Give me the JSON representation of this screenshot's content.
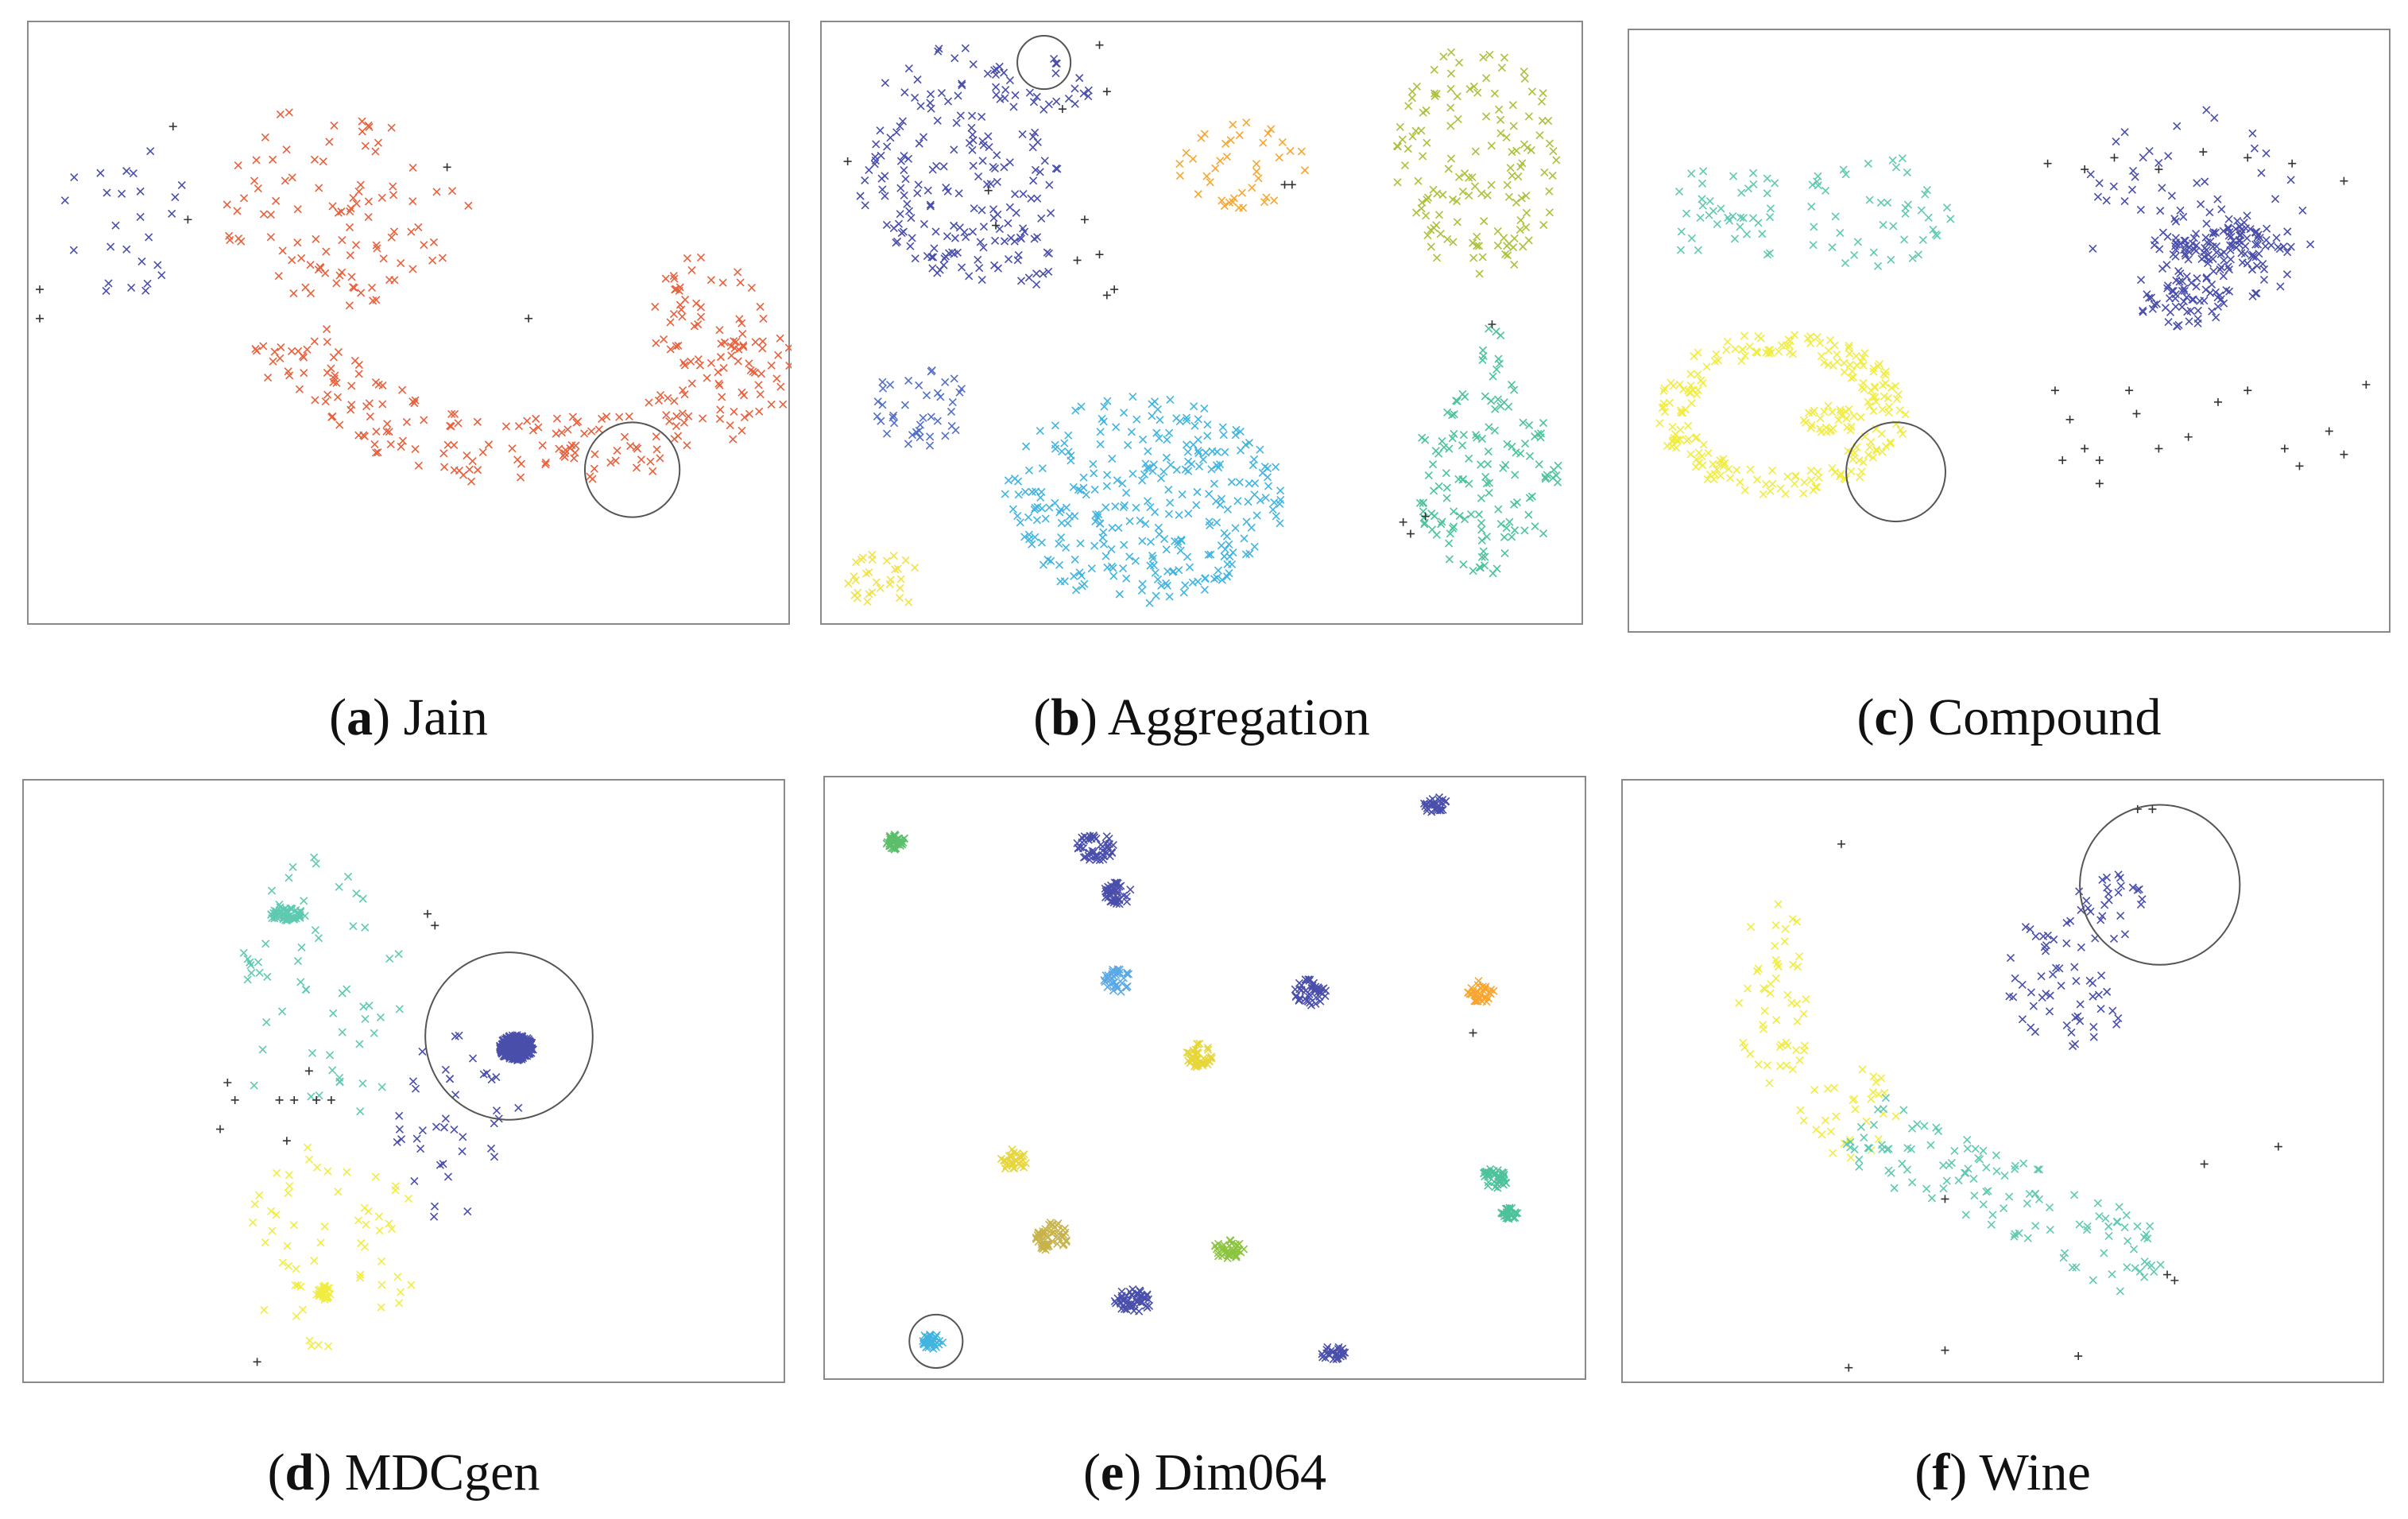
{
  "chart_data": [
    {
      "type": "scatter",
      "id": "jain",
      "label": "a",
      "name": "Jain",
      "xlim": [
        0,
        100
      ],
      "ylim": [
        0,
        100
      ],
      "clusters": [
        {
          "name": "cluster-1",
          "color": "#4a4fab",
          "regions": [
            {
              "shape": "blob",
              "cx": 12,
              "cy": 68,
              "rx": 9,
              "ry": 14,
              "n": 26
            }
          ]
        },
        {
          "name": "cluster-2",
          "color": "#e8603c",
          "regions": [
            {
              "shape": "arc",
              "cx": 67,
              "cy": 58,
              "rx": 36,
              "ry": 30,
              "a0": 200,
              "a1": 340,
              "w": 6,
              "n": 210
            },
            {
              "shape": "arc",
              "cx": 40,
              "cy": 80,
              "rx": 14,
              "ry": 22,
              "a0": 200,
              "a1": 300,
              "w": 5,
              "n": 40
            },
            {
              "shape": "blob",
              "cx": 48,
              "cy": 67,
              "rx": 12,
              "ry": 8,
              "n": 30
            },
            {
              "shape": "blob",
              "cx": 90,
              "cy": 52,
              "rx": 8,
              "ry": 10,
              "n": 50
            },
            {
              "shape": "blob",
              "cx": 38,
              "cy": 78,
              "rx": 14,
              "ry": 9,
              "n": 30
            }
          ]
        }
      ],
      "noise": [
        [
          0,
          56
        ],
        [
          0,
          51
        ],
        [
          18,
          84
        ],
        [
          55,
          77
        ],
        [
          66,
          51
        ],
        [
          20,
          68
        ]
      ],
      "circle": {
        "cx": 80,
        "cy": 25,
        "r": 6.4
      }
    },
    {
      "type": "scatter",
      "id": "aggregation",
      "label": "b",
      "name": "Aggregation",
      "xlim": [
        0,
        100
      ],
      "ylim": [
        0,
        100
      ],
      "clusters": [
        {
          "name": "cluster-1",
          "color": "#4a4fab",
          "regions": [
            {
              "shape": "blob",
              "cx": 17,
              "cy": 78,
              "rx": 14,
              "ry": 20,
              "n": 160
            },
            {
              "shape": "blob",
              "cx": 28,
              "cy": 91,
              "rx": 7,
              "ry": 6,
              "n": 20
            },
            {
              "shape": "blob",
              "cx": 22,
              "cy": 62,
              "rx": 11,
              "ry": 6,
              "n": 30
            }
          ]
        },
        {
          "name": "cluster-2",
          "color": "#f6a631",
          "regions": [
            {
              "shape": "blob",
              "cx": 55,
              "cy": 77,
              "rx": 9,
              "ry": 8,
              "n": 40
            }
          ]
        },
        {
          "name": "cluster-3",
          "color": "#a9c23b",
          "regions": [
            {
              "shape": "blob",
              "cx": 87,
              "cy": 78,
              "rx": 11,
              "ry": 20,
              "n": 140
            }
          ]
        },
        {
          "name": "cluster-4",
          "color": "#5470c6",
          "regions": [
            {
              "shape": "blob",
              "cx": 12,
              "cy": 36,
              "rx": 7,
              "ry": 7,
              "n": 40
            }
          ]
        },
        {
          "name": "cluster-5",
          "color": "#41b4e0",
          "regions": [
            {
              "shape": "blob",
              "cx": 42,
              "cy": 20,
              "rx": 19,
              "ry": 18,
              "n": 300
            }
          ]
        },
        {
          "name": "cluster-6",
          "color": "#f2e24a",
          "regions": [
            {
              "shape": "blob",
              "cx": 7,
              "cy": 6,
              "rx": 5,
              "ry": 5,
              "n": 30
            }
          ]
        },
        {
          "name": "cluster-7",
          "color": "#4cc39b",
          "regions": [
            {
              "shape": "blob",
              "cx": 88,
              "cy": 24,
              "rx": 10,
              "ry": 17,
              "n": 130
            },
            {
              "shape": "blob",
              "cx": 89,
              "cy": 45,
              "rx": 1.5,
              "ry": 5,
              "n": 10
            }
          ]
        }
      ],
      "noise": [
        [
          36,
          98
        ],
        [
          37,
          90
        ],
        [
          31,
          87
        ],
        [
          34,
          68
        ],
        [
          36,
          62
        ],
        [
          38,
          56
        ],
        [
          37,
          55
        ],
        [
          33,
          61
        ],
        [
          2,
          78
        ],
        [
          61,
          74
        ],
        [
          62,
          74
        ],
        [
          89,
          50
        ],
        [
          77,
          16
        ],
        [
          80,
          17
        ],
        [
          78,
          14
        ],
        [
          22,
          67
        ],
        [
          21,
          73
        ]
      ],
      "circle": {
        "cx": 28.5,
        "cy": 95,
        "r": 3.6
      }
    },
    {
      "type": "scatter",
      "id": "compound",
      "label": "c",
      "name": "Compound",
      "xlim": [
        0,
        100
      ],
      "ylim": [
        0,
        100
      ],
      "clusters": [
        {
          "name": "cluster-1",
          "color": "#5fc9b1",
          "regions": [
            {
              "shape": "blob",
              "cx": 12,
              "cy": 70,
              "rx": 9,
              "ry": 9,
              "n": 40
            },
            {
              "shape": "blob",
              "cx": 32,
              "cy": 71,
              "rx": 11,
              "ry": 10,
              "n": 45
            }
          ]
        },
        {
          "name": "cluster-2",
          "color": "#f1ec43",
          "regions": [
            {
              "shape": "ring",
              "cx": 19,
              "cy": 36,
              "rx": 17,
              "ry": 14,
              "w": 0.3,
              "n": 220
            },
            {
              "shape": "blob",
              "cx": 26,
              "cy": 35,
              "rx": 4,
              "ry": 2.4,
              "n": 30
            }
          ]
        },
        {
          "name": "cluster-3",
          "color": "#4a4fab",
          "regions": [
            {
              "shape": "blob",
              "cx": 77,
              "cy": 63,
              "rx": 8,
              "ry": 10,
              "n": 80
            },
            {
              "shape": "blob",
              "cx": 80,
              "cy": 65,
              "rx": 8,
              "ry": 3.5,
              "n": 60
            },
            {
              "shape": "blob",
              "cx": 73,
              "cy": 55,
              "rx": 6,
              "ry": 4,
              "n": 40
            },
            {
              "shape": "blob",
              "cx": 75,
              "cy": 70,
              "rx": 16,
              "ry": 20,
              "n": 50
            }
          ]
        }
      ],
      "noise": [
        [
          55,
          79
        ],
        [
          60,
          78
        ],
        [
          64,
          80
        ],
        [
          70,
          78
        ],
        [
          76,
          81
        ],
        [
          82,
          80
        ],
        [
          88,
          79
        ],
        [
          95,
          76
        ],
        [
          56,
          40
        ],
        [
          58,
          35
        ],
        [
          60,
          30
        ],
        [
          62,
          28
        ],
        [
          62,
          24
        ],
        [
          67,
          36
        ],
        [
          70,
          30
        ],
        [
          74,
          32
        ],
        [
          78,
          38
        ],
        [
          82,
          40
        ],
        [
          87,
          30
        ],
        [
          89,
          27
        ],
        [
          93,
          33
        ],
        [
          95,
          29
        ],
        [
          98,
          41
        ],
        [
          57,
          28
        ],
        [
          66,
          40
        ]
      ],
      "circle": {
        "cx": 34.5,
        "cy": 26,
        "r": 6.7
      }
    },
    {
      "type": "scatter",
      "id": "mdcgen",
      "label": "d",
      "name": "MDCgen",
      "xlim": [
        0,
        100
      ],
      "ylim": [
        0,
        100
      ],
      "clusters": [
        {
          "name": "cluster-1",
          "color": "#5fc9b1",
          "regions": [
            {
              "shape": "blob",
              "cx": 34,
              "cy": 79,
              "rx": 2.2,
              "ry": 1.3,
              "n": 60
            },
            {
              "shape": "blob",
              "cx": 38,
              "cy": 65,
              "rx": 12,
              "ry": 25,
              "n": 60
            }
          ]
        },
        {
          "name": "cluster-2",
          "color": "#4a4fab",
          "regions": [
            {
              "shape": "blob",
              "cx": 65,
              "cy": 56,
              "rx": 2.3,
              "ry": 2.2,
              "n": 250
            },
            {
              "shape": "blob",
              "cx": 57,
              "cy": 43,
              "rx": 9,
              "ry": 18,
              "n": 40
            }
          ]
        },
        {
          "name": "cluster-3",
          "color": "#f1ec43",
          "regions": [
            {
              "shape": "blob",
              "cx": 39,
              "cy": 14,
              "rx": 0.9,
              "ry": 1.3,
              "n": 30
            },
            {
              "shape": "blob",
              "cx": 40,
              "cy": 22,
              "rx": 12,
              "ry": 18,
              "n": 60
            }
          ]
        }
      ],
      "noise": [
        [
          26,
          50
        ],
        [
          27,
          47
        ],
        [
          25,
          42
        ],
        [
          37,
          52
        ],
        [
          38,
          47
        ],
        [
          40,
          47
        ],
        [
          33,
          47
        ],
        [
          35,
          47
        ],
        [
          34,
          40
        ],
        [
          53,
          79
        ],
        [
          54,
          77
        ],
        [
          30,
          2
        ]
      ],
      "circle": {
        "cx": 64,
        "cy": 58,
        "r": 11.3
      }
    },
    {
      "type": "scatter",
      "id": "dim064",
      "label": "e",
      "name": "Dim064",
      "xlim": [
        0,
        100
      ],
      "ylim": [
        0,
        100
      ],
      "clusters": [
        {
          "name": "cluster-1",
          "color": "#5bbf6b",
          "regions": [
            {
              "shape": "blob",
              "cx": 8,
              "cy": 91,
              "rx": 1.3,
              "ry": 1.5,
              "n": 40
            }
          ]
        },
        {
          "name": "cluster-2",
          "color": "#4a4fab",
          "regions": [
            {
              "shape": "blob",
              "cx": 35,
              "cy": 90,
              "rx": 2.5,
              "ry": 3,
              "n": 50
            }
          ]
        },
        {
          "name": "cluster-3",
          "color": "#4a4fab",
          "regions": [
            {
              "shape": "blob",
              "cx": 38,
              "cy": 82,
              "rx": 2,
              "ry": 2,
              "n": 45
            }
          ]
        },
        {
          "name": "cluster-4",
          "color": "#4a4fab",
          "regions": [
            {
              "shape": "blob",
              "cx": 81,
              "cy": 97,
              "rx": 1.8,
              "ry": 1.6,
              "n": 30
            }
          ]
        },
        {
          "name": "cluster-5",
          "color": "#5aa9e6",
          "regions": [
            {
              "shape": "blob",
              "cx": 38,
              "cy": 67,
              "rx": 1.8,
              "ry": 2,
              "n": 35
            }
          ]
        },
        {
          "name": "cluster-6",
          "color": "#4a4fab",
          "regions": [
            {
              "shape": "blob",
              "cx": 64,
              "cy": 65,
              "rx": 2.2,
              "ry": 2.3,
              "n": 45
            }
          ]
        },
        {
          "name": "cluster-7",
          "color": "#f6a631",
          "regions": [
            {
              "shape": "blob",
              "cx": 87,
              "cy": 65,
              "rx": 1.8,
              "ry": 2,
              "n": 35
            }
          ]
        },
        {
          "name": "cluster-8",
          "color": "#e6d63a",
          "regions": [
            {
              "shape": "blob",
              "cx": 49,
              "cy": 54,
              "rx": 1.8,
              "ry": 2.2,
              "n": 40
            }
          ]
        },
        {
          "name": "cluster-9",
          "color": "#e6d63a",
          "regions": [
            {
              "shape": "blob",
              "cx": 24,
              "cy": 36,
              "rx": 1.8,
              "ry": 2,
              "n": 30
            }
          ]
        },
        {
          "name": "cluster-10",
          "color": "#c7b34a",
          "regions": [
            {
              "shape": "blob",
              "cx": 29,
              "cy": 23,
              "rx": 2.4,
              "ry": 2.5,
              "n": 55
            }
          ]
        },
        {
          "name": "cluster-11",
          "color": "#8bc53f",
          "regions": [
            {
              "shape": "blob",
              "cx": 53,
              "cy": 21,
              "rx": 2.3,
              "ry": 1.8,
              "n": 40
            }
          ]
        },
        {
          "name": "cluster-12",
          "color": "#4a4fab",
          "regions": [
            {
              "shape": "blob",
              "cx": 40,
              "cy": 12,
              "rx": 2.6,
              "ry": 2,
              "n": 50
            }
          ]
        },
        {
          "name": "cluster-13",
          "color": "#4cc39b",
          "regions": [
            {
              "shape": "blob",
              "cx": 89,
              "cy": 33,
              "rx": 1.8,
              "ry": 1.8,
              "n": 40
            }
          ]
        },
        {
          "name": "cluster-14",
          "color": "#4cc39b",
          "regions": [
            {
              "shape": "blob",
              "cx": 91,
              "cy": 27,
              "rx": 1.2,
              "ry": 1.2,
              "n": 25
            }
          ]
        },
        {
          "name": "cluster-15",
          "color": "#4a4fab",
          "regions": [
            {
              "shape": "blob",
              "cx": 67,
              "cy": 3,
              "rx": 1.8,
              "ry": 1.2,
              "n": 30
            }
          ]
        },
        {
          "name": "cluster-16",
          "color": "#41b4e0",
          "regions": [
            {
              "shape": "blob",
              "cx": 13,
              "cy": 5,
              "rx": 1.4,
              "ry": 1.5,
              "n": 35
            }
          ]
        }
      ],
      "noise": [
        [
          86,
          58
        ]
      ],
      "circle": {
        "cx": 13.5,
        "cy": 5,
        "r": 3.6
      }
    },
    {
      "type": "scatter",
      "id": "wine",
      "label": "f",
      "name": "Wine",
      "xlim": [
        0,
        100
      ],
      "ylim": [
        0,
        100
      ],
      "clusters": [
        {
          "name": "cluster-1",
          "color": "#f1ec43",
          "regions": [
            {
              "shape": "blob",
              "cx": 19,
              "cy": 65,
              "rx": 5,
              "ry": 16,
              "n": 50
            },
            {
              "shape": "blob",
              "cx": 29,
              "cy": 45,
              "rx": 7,
              "ry": 8,
              "n": 30
            }
          ]
        },
        {
          "name": "cluster-2",
          "color": "#4a4fab",
          "regions": [
            {
              "shape": "blob",
              "cx": 59,
              "cy": 69,
              "rx": 9,
              "ry": 13,
              "n": 60
            },
            {
              "shape": "blob",
              "cx": 65,
              "cy": 82,
              "rx": 6,
              "ry": 4,
              "n": 20
            }
          ]
        },
        {
          "name": "cluster-3",
          "color": "#5fc9b1",
          "regions": [
            {
              "shape": "band",
              "x0": 30,
              "y0": 42,
              "x1": 72,
              "y1": 18,
              "w": 6,
              "n": 120
            }
          ]
        }
      ],
      "noise": [
        [
          28,
          91
        ],
        [
          29,
          1
        ],
        [
          42,
          30
        ],
        [
          42,
          4
        ],
        [
          60,
          3
        ],
        [
          68,
          97
        ],
        [
          70,
          97
        ],
        [
          77,
          36
        ],
        [
          87,
          39
        ],
        [
          72,
          17
        ],
        [
          73,
          16
        ]
      ],
      "circle": {
        "cx": 71,
        "cy": 84,
        "r": 10.8
      }
    }
  ],
  "captions": [
    {
      "label": "a",
      "name": "Jain"
    },
    {
      "label": "b",
      "name": "Aggregation"
    },
    {
      "label": "c",
      "name": "Compound"
    },
    {
      "label": "d",
      "name": "MDCgen"
    },
    {
      "label": "e",
      "name": "Dim064"
    },
    {
      "label": "f",
      "name": "Wine"
    }
  ],
  "noise_color": "#333333",
  "circle_color": "#555555"
}
